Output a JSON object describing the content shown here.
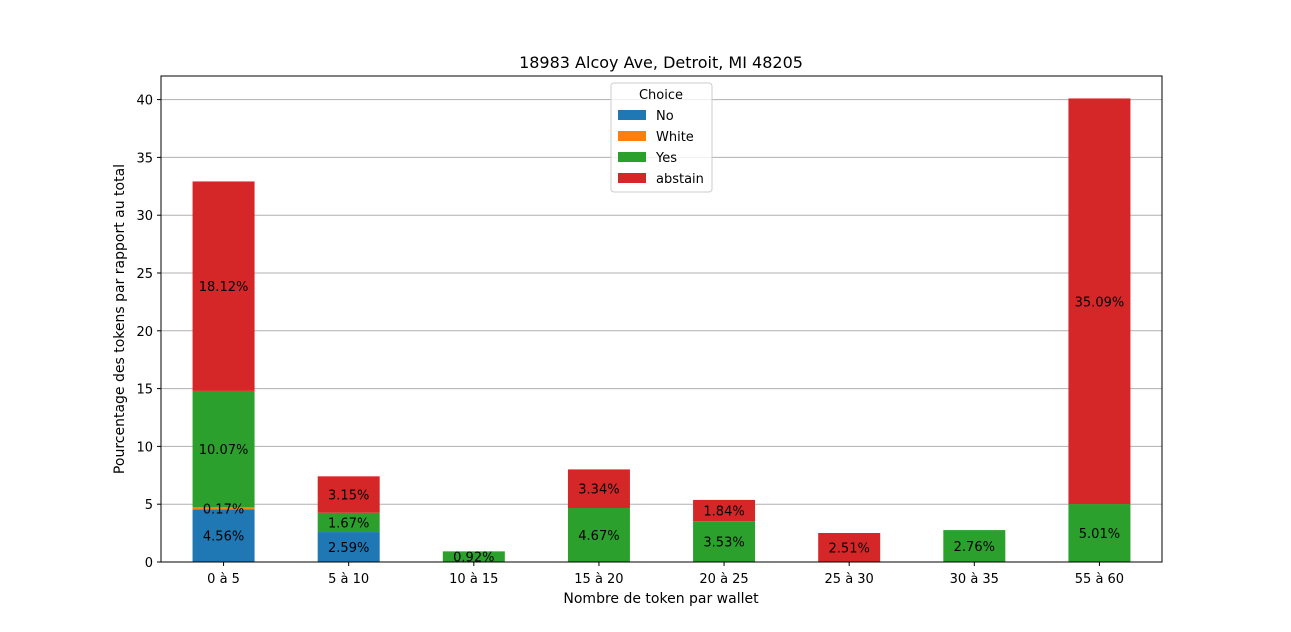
{
  "chart_data": {
    "type": "bar",
    "stacked": true,
    "title": "18983 Alcoy Ave, Detroit, MI 48205",
    "xlabel": "Nombre de token par wallet",
    "ylabel": "Pourcentage des tokens par rapport au total",
    "ylim": [
      0,
      42
    ],
    "yticks": [
      "0",
      "5",
      "10",
      "15",
      "20",
      "25",
      "30",
      "35",
      "40"
    ],
    "grid": "y",
    "legend": {
      "title": "Choice",
      "position": "top-center"
    },
    "categories": [
      "0 à 5",
      "5 à 10",
      "10 à 15",
      "15 à 20",
      "20 à 25",
      "25 à 30",
      "30 à 35",
      "55 à 60"
    ],
    "series": [
      {
        "name": "No",
        "color": "#1f77b4",
        "values": [
          4.56,
          2.59,
          0,
          0,
          0,
          0,
          0,
          0
        ],
        "labels": [
          "4.56%",
          "2.59%",
          "",
          "",
          "",
          "",
          "",
          ""
        ]
      },
      {
        "name": "White",
        "color": "#ff7f0e",
        "values": [
          0.17,
          0,
          0,
          0,
          0,
          0,
          0,
          0
        ],
        "labels": [
          "0.17%",
          "",
          "",
          "",
          "",
          "",
          "",
          ""
        ]
      },
      {
        "name": "Yes",
        "color": "#2ca02c",
        "values": [
          10.07,
          1.67,
          0.92,
          4.67,
          3.53,
          0,
          2.76,
          5.01
        ],
        "labels": [
          "10.07%",
          "1.67%",
          "0.92%",
          "4.67%",
          "3.53%",
          "",
          "2.76%",
          "5.01%"
        ]
      },
      {
        "name": "abstain",
        "color": "#d62728",
        "values": [
          18.12,
          3.15,
          0,
          3.34,
          1.84,
          2.51,
          0,
          35.09
        ],
        "labels": [
          "18.12%",
          "3.15%",
          "",
          "3.34%",
          "1.84%",
          "2.51%",
          "",
          "35.09%"
        ]
      }
    ]
  }
}
